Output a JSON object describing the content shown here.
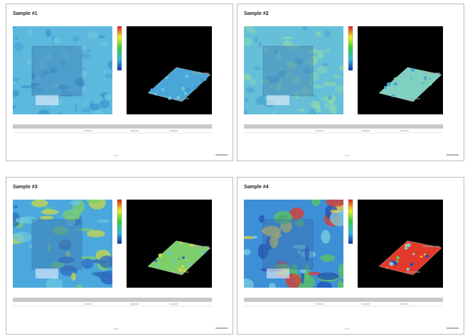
{
  "pages": [
    {
      "title": "Sample #1"
    },
    {
      "title": "Sample #2"
    },
    {
      "title": "Sample #3"
    },
    {
      "title": "Sample #4"
    }
  ]
}
